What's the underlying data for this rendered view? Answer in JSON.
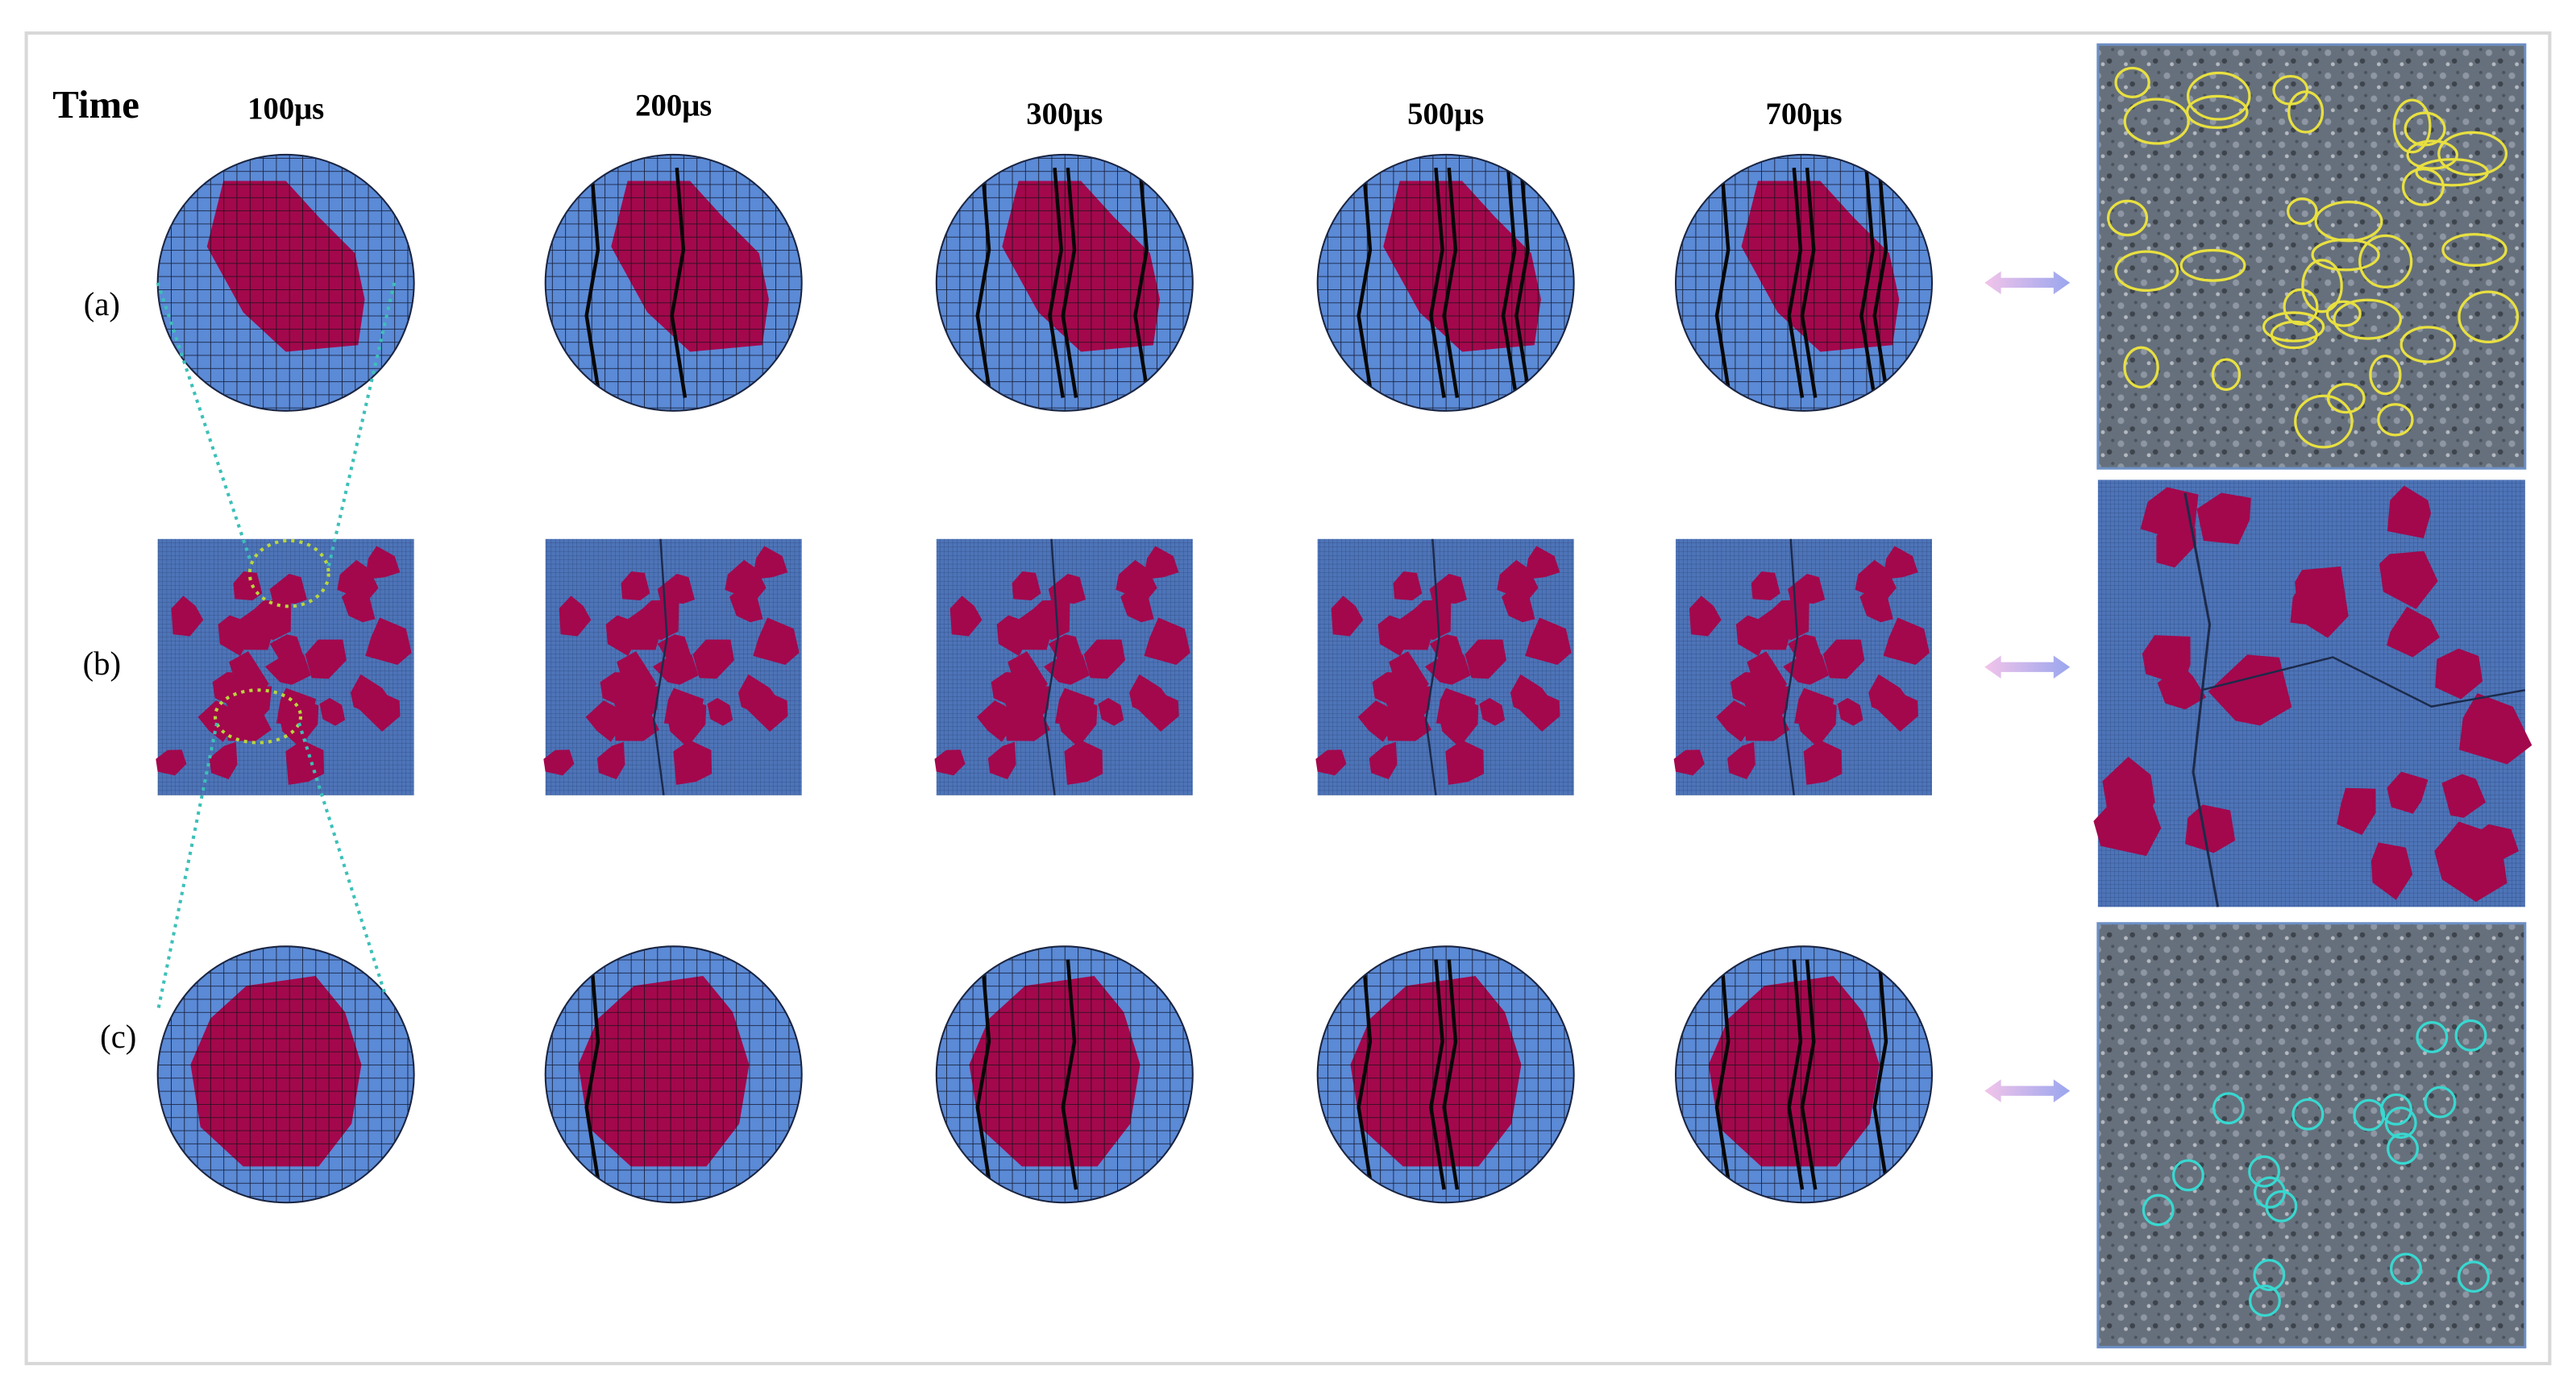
{
  "header": {
    "time_label": "Time",
    "times": [
      "100μs",
      "200μs",
      "300μs",
      "500μs",
      "700μs"
    ]
  },
  "rows": [
    {
      "label": "(a)"
    },
    {
      "label": "(b)"
    },
    {
      "label": "(c)"
    }
  ]
}
